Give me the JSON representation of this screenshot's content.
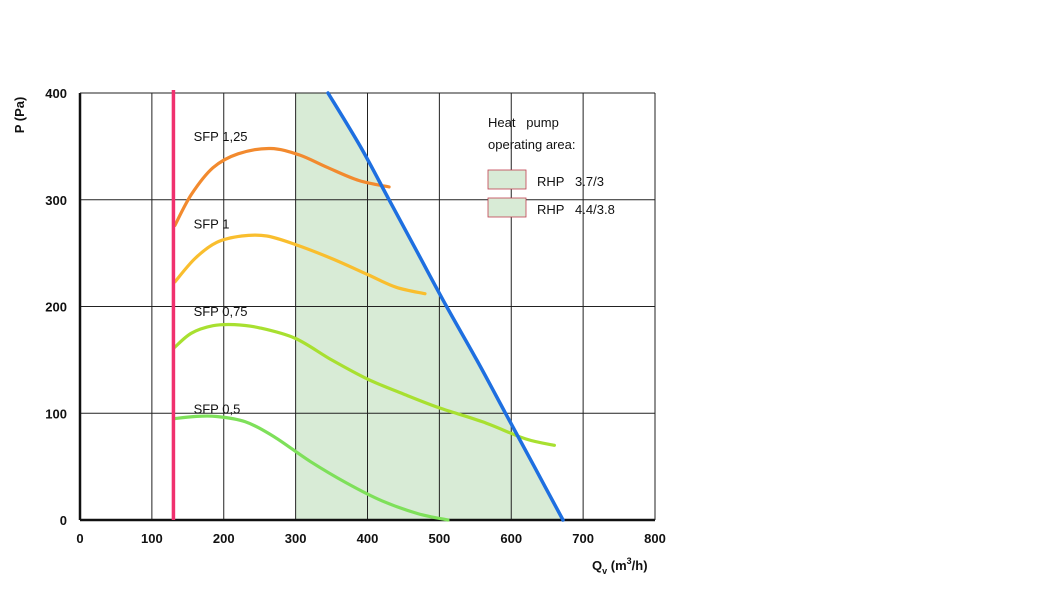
{
  "chart_data": {
    "type": "line",
    "title": "",
    "xlabel": "Q",
    "xlabel_sub": "v",
    "xlabel_unit_pre": " (m",
    "xlabel_unit_sup": "3",
    "xlabel_unit_post": "/h)",
    "ylabel": "P (Pa)",
    "xlim": [
      0,
      800
    ],
    "ylim": [
      0,
      400
    ],
    "xticks": [
      0,
      100,
      200,
      300,
      400,
      500,
      600,
      700,
      800
    ],
    "yticks": [
      0,
      100,
      200,
      300,
      400
    ],
    "grid": true,
    "legend": {
      "title_line1": "Heat   pump",
      "title_line2": "operating area:",
      "entries": [
        {
          "label": "RHP   3.7/3",
          "color": "#d8ebd6"
        },
        {
          "label": "RHP   4.4/3.8",
          "color": "#d8ebd6"
        }
      ]
    },
    "operating_area": {
      "color": "#d8ebd6",
      "points": [
        [
          300,
          0
        ],
        [
          300,
          400
        ],
        [
          345,
          400
        ],
        [
          390,
          350
        ],
        [
          430,
          300
        ],
        [
          470,
          250
        ],
        [
          510,
          200
        ],
        [
          552,
          150
        ],
        [
          592,
          100
        ],
        [
          632,
          50
        ],
        [
          672,
          0
        ]
      ]
    },
    "min_flow_line": {
      "x": 130,
      "color": "#f0306e"
    },
    "max_curve": {
      "color": "#1e6fe0",
      "points": [
        [
          345,
          400
        ],
        [
          390,
          350
        ],
        [
          430,
          300
        ],
        [
          470,
          250
        ],
        [
          510,
          200
        ],
        [
          552,
          150
        ],
        [
          592,
          100
        ],
        [
          632,
          50
        ],
        [
          672,
          0
        ]
      ]
    },
    "series": [
      {
        "name": "SFP 1,25",
        "label": "SFP 1,25",
        "label_at": [
          158,
          355
        ],
        "color": "#f28a2e",
        "points": [
          [
            132,
            276
          ],
          [
            155,
            305
          ],
          [
            185,
            330
          ],
          [
            220,
            343
          ],
          [
            265,
            348
          ],
          [
            305,
            342
          ],
          [
            345,
            330
          ],
          [
            388,
            318
          ],
          [
            430,
            312
          ]
        ]
      },
      {
        "name": "SFP 1",
        "label": "SFP 1",
        "label_at": [
          158,
          273
        ],
        "color": "#f9be2e",
        "points": [
          [
            132,
            223
          ],
          [
            160,
            245
          ],
          [
            190,
            260
          ],
          [
            225,
            266
          ],
          [
            260,
            266
          ],
          [
            300,
            258
          ],
          [
            350,
            245
          ],
          [
            400,
            230
          ],
          [
            440,
            218
          ],
          [
            480,
            212
          ]
        ]
      },
      {
        "name": "SFP 0,75",
        "label": "SFP 0,75",
        "label_at": [
          158,
          191
        ],
        "color": "#a8e030",
        "points": [
          [
            132,
            162
          ],
          [
            155,
            175
          ],
          [
            185,
            182
          ],
          [
            215,
            183
          ],
          [
            250,
            180
          ],
          [
            300,
            170
          ],
          [
            350,
            150
          ],
          [
            400,
            132
          ],
          [
            450,
            118
          ],
          [
            500,
            105
          ],
          [
            560,
            92
          ],
          [
            620,
            76
          ],
          [
            660,
            70
          ]
        ]
      },
      {
        "name": "SFP 0,5",
        "label": "SFP 0,5",
        "label_at": [
          158,
          100
        ],
        "color": "#7ee05a",
        "points": [
          [
            132,
            95
          ],
          [
            160,
            97
          ],
          [
            190,
            97
          ],
          [
            230,
            92
          ],
          [
            270,
            78
          ],
          [
            320,
            55
          ],
          [
            370,
            35
          ],
          [
            420,
            18
          ],
          [
            470,
            6
          ],
          [
            512,
            0
          ]
        ]
      }
    ]
  }
}
